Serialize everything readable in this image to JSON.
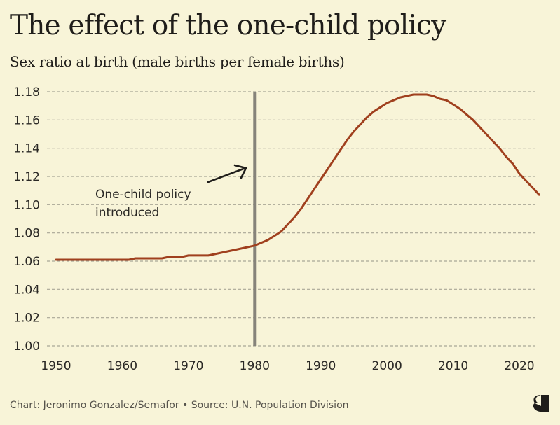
{
  "header": {
    "title": "The effect of the one-child policy",
    "subtitle": "Sex ratio at birth (male births per female births)"
  },
  "footer": {
    "credit": "Chart: Jeronimo Gonzalez/Semafor • Source: U.N. Population Division",
    "logo_icon": "semafor-logo-icon"
  },
  "colors": {
    "background": "#f8f4d8",
    "line": "#a0401e",
    "gridline": "#a9a696",
    "marker_line": "#86837a",
    "text": "#1f1d1a"
  },
  "chart_data": {
    "type": "line",
    "title": "The effect of the one-child policy",
    "subtitle": "Sex ratio at birth (male births per female births)",
    "xlabel": "",
    "ylabel": "",
    "xlim": [
      1950,
      2023
    ],
    "ylim": [
      1.0,
      1.18
    ],
    "grid": true,
    "x_ticks": [
      "1950",
      "1960",
      "1970",
      "1980",
      "1990",
      "2000",
      "2010",
      "2020"
    ],
    "y_ticks": [
      "1.00",
      "1.02",
      "1.04",
      "1.06",
      "1.08",
      "1.10",
      "1.12",
      "1.14",
      "1.16",
      "1.18"
    ],
    "series": [
      {
        "name": "Sex ratio at birth",
        "x": [
          1950,
          1951,
          1952,
          1953,
          1954,
          1955,
          1956,
          1957,
          1958,
          1959,
          1960,
          1961,
          1962,
          1963,
          1964,
          1965,
          1966,
          1967,
          1968,
          1969,
          1970,
          1971,
          1972,
          1973,
          1974,
          1975,
          1976,
          1977,
          1978,
          1979,
          1980,
          1981,
          1982,
          1983,
          1984,
          1985,
          1986,
          1987,
          1988,
          1989,
          1990,
          1991,
          1992,
          1993,
          1994,
          1995,
          1996,
          1997,
          1998,
          1999,
          2000,
          2001,
          2002,
          2003,
          2004,
          2005,
          2006,
          2007,
          2008,
          2009,
          2010,
          2011,
          2012,
          2013,
          2014,
          2015,
          2016,
          2017,
          2018,
          2019,
          2020,
          2021,
          2022,
          2023
        ],
        "values": [
          1.061,
          1.061,
          1.061,
          1.061,
          1.061,
          1.061,
          1.061,
          1.061,
          1.061,
          1.061,
          1.061,
          1.061,
          1.062,
          1.062,
          1.062,
          1.062,
          1.062,
          1.063,
          1.063,
          1.063,
          1.064,
          1.064,
          1.064,
          1.064,
          1.065,
          1.066,
          1.067,
          1.068,
          1.069,
          1.07,
          1.071,
          1.073,
          1.075,
          1.078,
          1.081,
          1.086,
          1.091,
          1.097,
          1.104,
          1.111,
          1.118,
          1.125,
          1.132,
          1.139,
          1.146,
          1.152,
          1.157,
          1.162,
          1.166,
          1.169,
          1.172,
          1.174,
          1.176,
          1.177,
          1.178,
          1.178,
          1.178,
          1.177,
          1.175,
          1.174,
          1.171,
          1.168,
          1.164,
          1.16,
          1.155,
          1.15,
          1.145,
          1.14,
          1.134,
          1.129,
          1.122,
          1.117,
          1.112,
          1.107
        ]
      }
    ],
    "reference_line": {
      "x": 1980,
      "label": "One-child policy introduced"
    },
    "annotation": {
      "lines": [
        "One-child policy",
        "introduced"
      ],
      "arrow": "arrow-pointing-to-1980-line"
    }
  }
}
